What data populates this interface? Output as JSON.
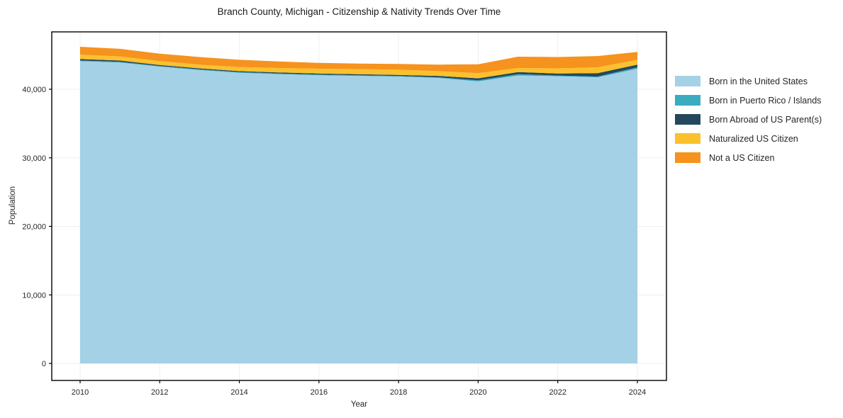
{
  "chart_data": {
    "type": "area",
    "stacked": true,
    "title": "Branch County, Michigan - Citizenship & Nativity Trends Over Time",
    "xlabel": "Year",
    "ylabel": "Population",
    "grid": true,
    "legend_position": "right-outside",
    "x": [
      2010,
      2011,
      2012,
      2013,
      2014,
      2015,
      2016,
      2017,
      2018,
      2019,
      2020,
      2021,
      2022,
      2023,
      2024
    ],
    "xticks": [
      2010,
      2012,
      2014,
      2016,
      2018,
      2020,
      2022,
      2024
    ],
    "xtick_labels": [
      "2010",
      "2012",
      "2014",
      "2016",
      "2018",
      "2020",
      "2022",
      "2024"
    ],
    "yticks": [
      0,
      10000,
      20000,
      30000,
      40000
    ],
    "ytick_labels": [
      "0",
      "10,000",
      "20,000",
      "30,000",
      "40,000"
    ],
    "ylim": [
      0,
      48000
    ],
    "series": [
      {
        "name": "Born in the United States",
        "color": "#a4d1e6",
        "values": [
          44100,
          43900,
          43300,
          42800,
          42400,
          42200,
          42050,
          41950,
          41850,
          41650,
          41150,
          42000,
          41900,
          41750,
          43000
        ]
      },
      {
        "name": "Born in Puerto Rico / Islands",
        "color": "#3aabc1",
        "values": [
          100,
          100,
          100,
          100,
          100,
          100,
          100,
          100,
          100,
          100,
          150,
          200,
          100,
          100,
          200
        ]
      },
      {
        "name": "Born Abroad of US Parent(s)",
        "color": "#25475e",
        "values": [
          200,
          200,
          150,
          150,
          150,
          150,
          150,
          150,
          150,
          200,
          300,
          300,
          300,
          500,
          400
        ]
      },
      {
        "name": "Naturalized US Citizen",
        "color": "#fbc12d",
        "values": [
          650,
          600,
          550,
          550,
          600,
          650,
          700,
          750,
          750,
          700,
          750,
          600,
          750,
          850,
          700
        ]
      },
      {
        "name": "Not a US Citizen",
        "color": "#f6921e",
        "values": [
          1150,
          1100,
          1100,
          1100,
          1050,
          950,
          850,
          800,
          850,
          950,
          1300,
          1650,
          1650,
          1650,
          1150
        ]
      }
    ]
  },
  "colors": {
    "grid": "#efefef",
    "spine": "#000000",
    "text": "#262626"
  }
}
